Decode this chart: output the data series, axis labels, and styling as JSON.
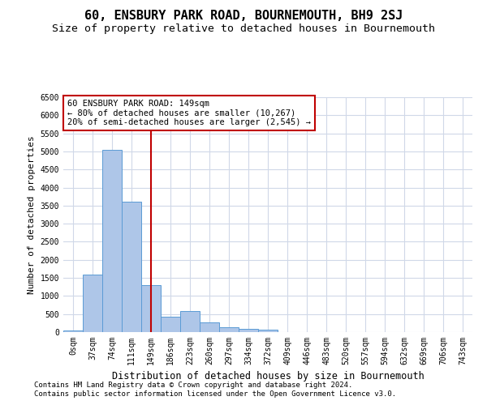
{
  "title": "60, ENSBURY PARK ROAD, BOURNEMOUTH, BH9 2SJ",
  "subtitle": "Size of property relative to detached houses in Bournemouth",
  "xlabel": "Distribution of detached houses by size in Bournemouth",
  "ylabel": "Number of detached properties",
  "footer1": "Contains HM Land Registry data © Crown copyright and database right 2024.",
  "footer2": "Contains public sector information licensed under the Open Government Licence v3.0.",
  "bar_categories": [
    "0sqm",
    "37sqm",
    "74sqm",
    "111sqm",
    "149sqm",
    "186sqm",
    "223sqm",
    "260sqm",
    "297sqm",
    "334sqm",
    "372sqm",
    "409sqm",
    "446sqm",
    "483sqm",
    "520sqm",
    "557sqm",
    "594sqm",
    "632sqm",
    "669sqm",
    "706sqm",
    "743sqm"
  ],
  "bar_values": [
    55,
    1600,
    5050,
    3600,
    1300,
    430,
    580,
    280,
    130,
    100,
    70,
    0,
    0,
    0,
    0,
    0,
    0,
    0,
    0,
    0,
    0
  ],
  "bar_color": "#aec6e8",
  "bar_edge_color": "#5b9bd5",
  "annotation_text": "60 ENSBURY PARK ROAD: 149sqm\n← 80% of detached houses are smaller (10,267)\n20% of semi-detached houses are larger (2,545) →",
  "vline_x": 4,
  "vline_color": "#c00000",
  "annotation_box_edge": "#c00000",
  "ylim": [
    0,
    6500
  ],
  "yticks": [
    0,
    500,
    1000,
    1500,
    2000,
    2500,
    3000,
    3500,
    4000,
    4500,
    5000,
    5500,
    6000,
    6500
  ],
  "background_color": "#ffffff",
  "grid_color": "#d0d8e8",
  "title_fontsize": 11,
  "subtitle_fontsize": 9.5,
  "label_fontsize": 8,
  "tick_fontsize": 7,
  "footer_fontsize": 6.5
}
